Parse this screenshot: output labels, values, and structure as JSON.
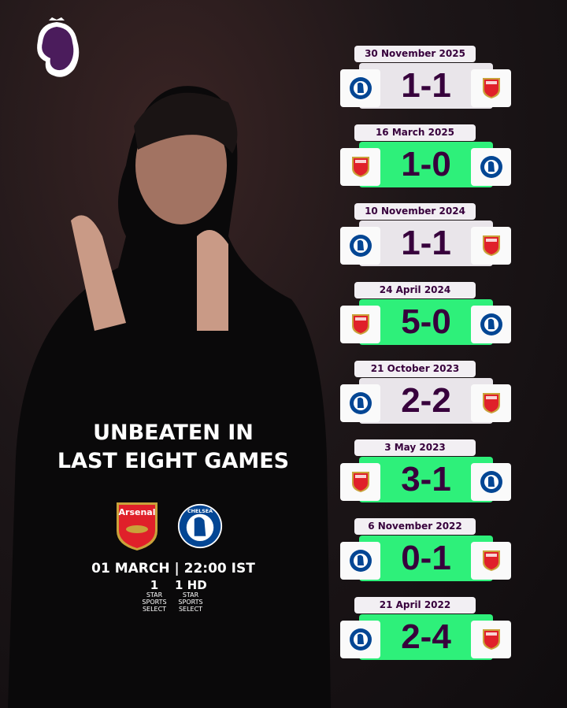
{
  "headline": {
    "line1": "UNBEATEN IN",
    "line2": "LAST EIGHT GAMES"
  },
  "fixture": {
    "home": "Arsenal",
    "away": "Chelsea",
    "kickoff": "01 MARCH | 22:00 IST"
  },
  "broadcasters": [
    {
      "name": "STAR SPORTS SELECT",
      "channel": "1"
    },
    {
      "name": "STAR SPORTS SELECT",
      "channel": "1 HD"
    }
  ],
  "colors": {
    "win": "#2ef07a",
    "draw": "#e9e5ea",
    "text": "#37003c"
  },
  "results": [
    {
      "date": "30 November 2025",
      "home": "chelsea",
      "away": "arsenal",
      "score": "1-1",
      "type": "draw"
    },
    {
      "date": "16 March 2025",
      "home": "arsenal",
      "away": "chelsea",
      "score": "1-0",
      "type": "win"
    },
    {
      "date": "10 November 2024",
      "home": "chelsea",
      "away": "arsenal",
      "score": "1-1",
      "type": "draw"
    },
    {
      "date": "24 April 2024",
      "home": "arsenal",
      "away": "chelsea",
      "score": "5-0",
      "type": "win"
    },
    {
      "date": "21 October 2023",
      "home": "chelsea",
      "away": "arsenal",
      "score": "2-2",
      "type": "draw"
    },
    {
      "date": "3 May 2023",
      "home": "arsenal",
      "away": "chelsea",
      "score": "3-1",
      "type": "win"
    },
    {
      "date": "6 November 2022",
      "home": "chelsea",
      "away": "arsenal",
      "score": "0-1",
      "type": "win"
    },
    {
      "date": "21 April 2022",
      "home": "chelsea",
      "away": "arsenal",
      "score": "2-4",
      "type": "win"
    }
  ]
}
